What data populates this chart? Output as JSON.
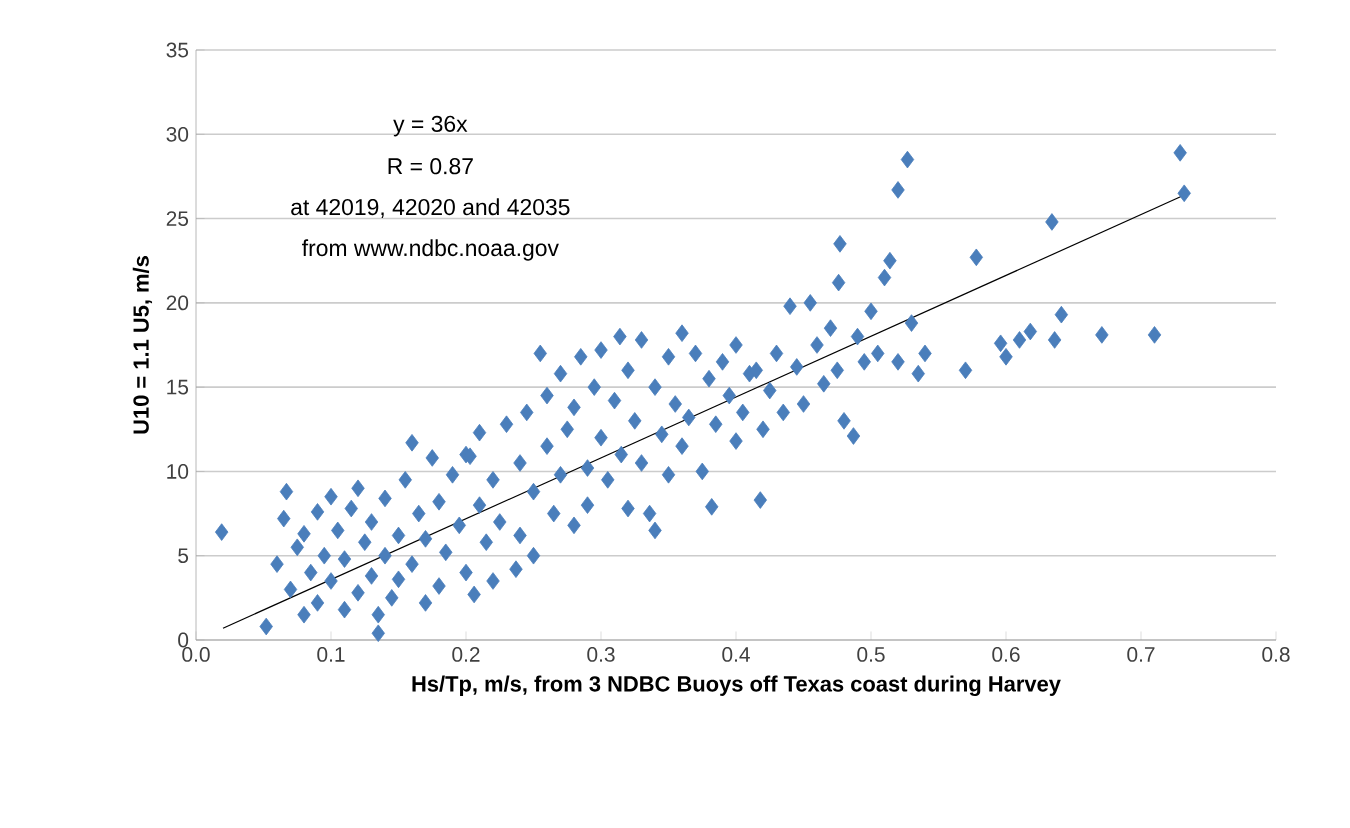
{
  "chart_data": {
    "type": "scatter",
    "xlabel": "Hs/Tp, m/s, from 3 NDBC Buoys off Texas coast during Harvey",
    "ylabel": "U10 = 1.1 U5, m/s",
    "annotations": [
      "y = 36x",
      "R = 0.87",
      "at 42019, 42020 and 42035",
      "from www.ndbc.noaa.gov"
    ],
    "xlim": [
      0,
      0.8
    ],
    "ylim": [
      0,
      35
    ],
    "xticks": [
      {
        "value": 0,
        "label": "0.0"
      },
      0.1,
      0.2,
      0.3,
      0.4,
      0.5,
      0.6,
      0.7,
      0.8
    ],
    "yticks": [
      0,
      5,
      10,
      15,
      20,
      25,
      30,
      35
    ],
    "grid": "y",
    "marker": "diamond",
    "series": [
      {
        "color": "#4a7ebb",
        "x": [
          0.019,
          0.052,
          0.06,
          0.065,
          0.067,
          0.07,
          0.075,
          0.08,
          0.08,
          0.085,
          0.09,
          0.09,
          0.095,
          0.1,
          0.1,
          0.105,
          0.11,
          0.11,
          0.115,
          0.12,
          0.12,
          0.125,
          0.13,
          0.13,
          0.135,
          0.135,
          0.14,
          0.14,
          0.145,
          0.15,
          0.15,
          0.155,
          0.16,
          0.16,
          0.165,
          0.17,
          0.17,
          0.175,
          0.18,
          0.18,
          0.185,
          0.19,
          0.195,
          0.2,
          0.2,
          0.203,
          0.206,
          0.21,
          0.21,
          0.215,
          0.22,
          0.22,
          0.225,
          0.23,
          0.237,
          0.24,
          0.24,
          0.245,
          0.25,
          0.25,
          0.255,
          0.26,
          0.26,
          0.265,
          0.27,
          0.27,
          0.275,
          0.28,
          0.28,
          0.285,
          0.29,
          0.29,
          0.295,
          0.3,
          0.3,
          0.305,
          0.31,
          0.314,
          0.315,
          0.32,
          0.32,
          0.325,
          0.33,
          0.33,
          0.336,
          0.34,
          0.34,
          0.345,
          0.35,
          0.35,
          0.355,
          0.36,
          0.36,
          0.365,
          0.37,
          0.375,
          0.38,
          0.382,
          0.385,
          0.39,
          0.395,
          0.4,
          0.4,
          0.405,
          0.41,
          0.415,
          0.418,
          0.42,
          0.425,
          0.43,
          0.435,
          0.44,
          0.445,
          0.45,
          0.455,
          0.46,
          0.465,
          0.47,
          0.475,
          0.476,
          0.477,
          0.48,
          0.487,
          0.49,
          0.495,
          0.5,
          0.505,
          0.51,
          0.514,
          0.52,
          0.527,
          0.52,
          0.53,
          0.535,
          0.54,
          0.578,
          0.57,
          0.596,
          0.6,
          0.61,
          0.618,
          0.634,
          0.636,
          0.641,
          0.671,
          0.71,
          0.729,
          0.732
        ],
        "values": [
          6.4,
          0.8,
          4.5,
          7.2,
          8.8,
          3.0,
          5.5,
          1.5,
          6.3,
          4.0,
          7.6,
          2.2,
          5.0,
          8.5,
          3.5,
          6.5,
          1.8,
          4.8,
          7.8,
          2.8,
          9.0,
          5.8,
          3.8,
          7.0,
          0.4,
          1.5,
          5.0,
          8.4,
          2.5,
          6.2,
          3.6,
          9.5,
          11.7,
          4.5,
          7.5,
          2.2,
          6.0,
          10.8,
          8.2,
          3.2,
          5.2,
          9.8,
          6.8,
          4.0,
          11.0,
          10.9,
          2.7,
          8.0,
          12.3,
          5.8,
          9.5,
          3.5,
          7.0,
          12.8,
          4.2,
          10.5,
          6.2,
          13.5,
          8.8,
          5.0,
          17.0,
          11.5,
          14.5,
          7.5,
          9.8,
          15.8,
          12.5,
          6.8,
          13.8,
          16.8,
          10.2,
          8.0,
          15.0,
          12.0,
          17.2,
          9.5,
          14.2,
          18.0,
          11.0,
          16.0,
          7.8,
          13.0,
          17.8,
          10.5,
          7.5,
          6.5,
          15.0,
          12.2,
          16.8,
          9.8,
          14.0,
          18.2,
          11.5,
          13.2,
          17.0,
          10.0,
          15.5,
          7.9,
          12.8,
          16.5,
          14.5,
          11.8,
          17.5,
          13.5,
          15.8,
          16.0,
          8.3,
          12.5,
          14.8,
          17.0,
          13.5,
          19.8,
          16.2,
          14.0,
          20.0,
          17.5,
          15.2,
          18.5,
          16.0,
          21.2,
          23.5,
          13.0,
          12.1,
          18.0,
          16.5,
          19.5,
          17.0,
          21.5,
          22.5,
          26.7,
          28.5,
          16.5,
          18.8,
          15.8,
          17.0,
          22.7,
          16.0,
          17.6,
          16.8,
          17.8,
          18.3,
          24.8,
          17.8,
          19.3,
          18.1,
          18.1,
          28.9,
          26.5
        ]
      },
      {
        "type": "line",
        "color": "#000000",
        "marker": "none",
        "x": [
          0.02,
          0.735
        ],
        "values": [
          0.7,
          26.5
        ]
      }
    ]
  }
}
